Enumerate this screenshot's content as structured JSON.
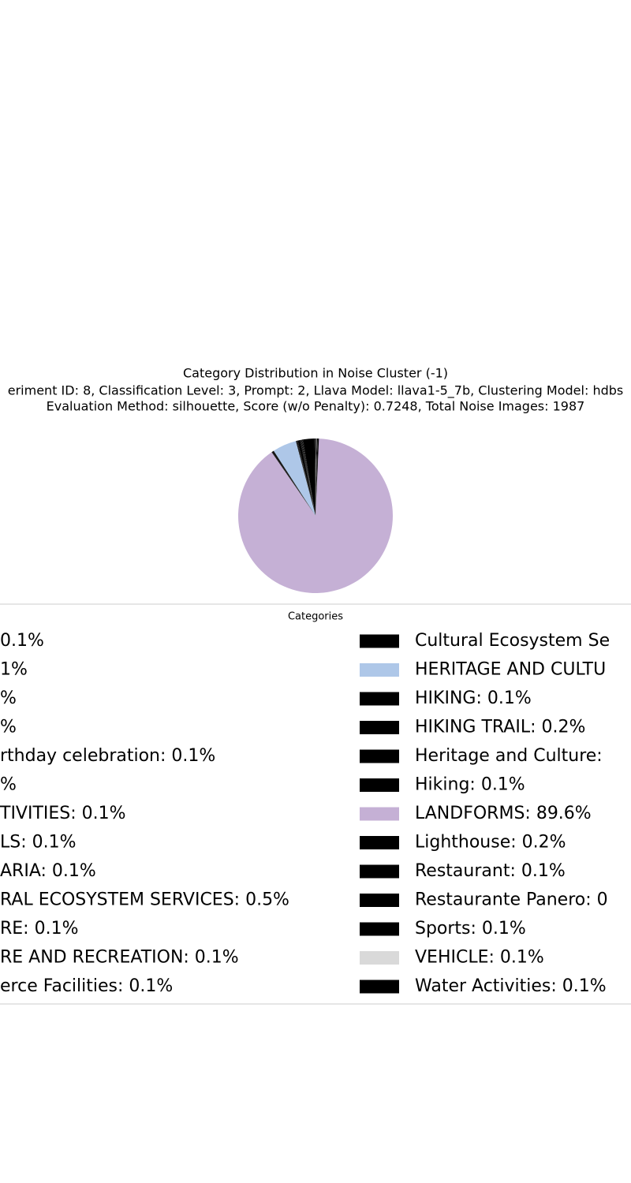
{
  "chart_data": {
    "type": "pie",
    "title": "Category Distribution in Noise Cluster (-1)",
    "subtitle": [
      "eriment ID: 8, Classification Level: 3, Prompt: 2, Llava Model: llava1-5_7b, Clustering Model: hdbs",
      "Evaluation Method: silhouette, Score (w/o Penalty): 0.7248, Total Noise Images: 1987"
    ],
    "legend_title": "Categories",
    "categories": [
      "0.1%",
      "1%",
      "%",
      "%",
      "rthday celebration: 0.1%",
      "%",
      "TIVITIES: 0.1%",
      "LS: 0.1%",
      "ARIA: 0.1%",
      "RAL ECOSYSTEM SERVICES: 0.5%",
      "RE: 0.1%",
      "RE AND RECREATION: 0.1%",
      "erce Facilities: 0.1%",
      "Cultural Ecosystem Se",
      "HERITAGE AND CULTU",
      "HIKING: 0.1%",
      "HIKING TRAIL: 0.2%",
      "Heritage and Culture:",
      "Hiking: 0.1%",
      "LANDFORMS: 89.6%",
      "Lighthouse: 0.2%",
      "Restaurant: 0.1%",
      "Restaurante Panero: 0",
      "Sports: 0.1%",
      "VEHICLE: 0.1%",
      "Water Activities: 0.1%"
    ],
    "values": [
      0.1,
      0.1,
      2.4,
      0.1,
      0.1,
      0.1,
      0.1,
      0.1,
      0.1,
      0.5,
      0.1,
      0.1,
      0.1,
      0.1,
      5.0,
      0.1,
      0.2,
      0.1,
      0.1,
      89.6,
      0.2,
      0.1,
      0.1,
      0.1,
      0.1,
      0.1
    ],
    "colors": [
      "#000000",
      "#000000",
      "#000000",
      "#000000",
      "#000000",
      "#000000",
      "#000000",
      "#000000",
      "#000000",
      "#000000",
      "#000000",
      "#000000",
      "#000000",
      "#000000",
      "#aec7e8",
      "#000000",
      "#000000",
      "#000000",
      "#000000",
      "#c5b0d5",
      "#000000",
      "#000000",
      "#000000",
      "#000000",
      "#d9d9d9",
      "#000000"
    ]
  }
}
